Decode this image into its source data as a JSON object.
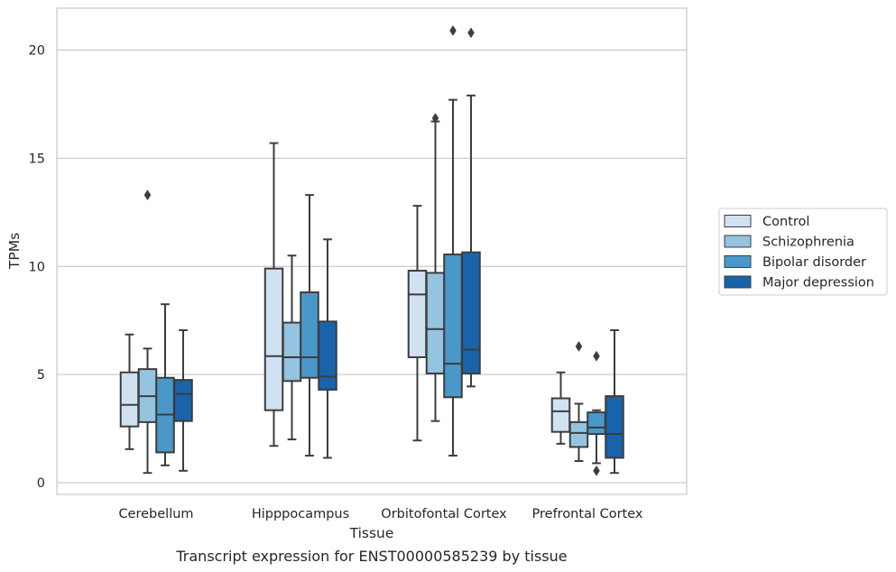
{
  "caption": "Transcript expression for ENST00000585239 by tissue",
  "chart_data": {
    "type": "box",
    "xlabel": "Tissue",
    "ylabel": "TPMs",
    "ylim": [
      -0.5,
      22
    ],
    "yticks": [
      0,
      5,
      10,
      15,
      20
    ],
    "grid": "horizontal",
    "legend_position": "right",
    "categories": [
      "Cerebellum",
      "Hipppocampus",
      "Orbitofontal Cortex",
      "Prefrontal Cortex"
    ],
    "series": [
      {
        "name": "Control",
        "color": "#d0e1f2",
        "boxes": [
          {
            "whislo": 1.55,
            "q1": 2.6,
            "med": 3.6,
            "q3": 5.1,
            "whishi": 6.85,
            "fliers": []
          },
          {
            "whislo": 1.7,
            "q1": 3.35,
            "med": 5.85,
            "q3": 9.9,
            "whishi": 15.7,
            "fliers": []
          },
          {
            "whislo": 1.95,
            "q1": 5.8,
            "med": 8.7,
            "q3": 9.8,
            "whishi": 12.8,
            "fliers": []
          },
          {
            "whislo": 1.8,
            "q1": 2.35,
            "med": 3.3,
            "q3": 3.9,
            "whishi": 5.1,
            "fliers": []
          }
        ]
      },
      {
        "name": "Schizophrenia",
        "color": "#94c4df",
        "boxes": [
          {
            "whislo": 0.45,
            "q1": 2.8,
            "med": 4.0,
            "q3": 5.25,
            "whishi": 6.2,
            "fliers": [
              13.3
            ]
          },
          {
            "whislo": 2.0,
            "q1": 4.7,
            "med": 5.8,
            "q3": 7.4,
            "whishi": 10.5,
            "fliers": []
          },
          {
            "whislo": 2.85,
            "q1": 5.05,
            "med": 7.1,
            "q3": 9.7,
            "whishi": 16.7,
            "fliers": [
              16.85
            ]
          },
          {
            "whislo": 1.0,
            "q1": 1.65,
            "med": 2.3,
            "q3": 2.8,
            "whishi": 3.65,
            "fliers": [
              6.3
            ]
          }
        ]
      },
      {
        "name": "Bipolar disorder",
        "color": "#4a98c9",
        "boxes": [
          {
            "whislo": 0.8,
            "q1": 1.4,
            "med": 3.15,
            "q3": 4.85,
            "whishi": 8.25,
            "fliers": []
          },
          {
            "whislo": 1.25,
            "q1": 4.85,
            "med": 5.8,
            "q3": 8.8,
            "whishi": 13.3,
            "fliers": []
          },
          {
            "whislo": 1.25,
            "q1": 3.95,
            "med": 5.5,
            "q3": 10.55,
            "whishi": 17.7,
            "fliers": [
              20.9
            ]
          },
          {
            "whislo": 0.9,
            "q1": 2.25,
            "med": 2.55,
            "q3": 3.25,
            "whishi": 3.35,
            "fliers": [
              5.85,
              0.55
            ]
          }
        ]
      },
      {
        "name": "Major depression",
        "color": "#1764ab",
        "boxes": [
          {
            "whislo": 0.55,
            "q1": 2.85,
            "med": 4.1,
            "q3": 4.75,
            "whishi": 7.05,
            "fliers": []
          },
          {
            "whislo": 1.15,
            "q1": 4.3,
            "med": 4.9,
            "q3": 7.45,
            "whishi": 11.25,
            "fliers": []
          },
          {
            "whislo": 4.45,
            "q1": 5.05,
            "med": 6.15,
            "q3": 10.65,
            "whishi": 17.9,
            "fliers": [
              20.8
            ]
          },
          {
            "whislo": 0.45,
            "q1": 1.15,
            "med": 2.25,
            "q3": 4.0,
            "whishi": 7.05,
            "fliers": []
          }
        ]
      }
    ]
  }
}
